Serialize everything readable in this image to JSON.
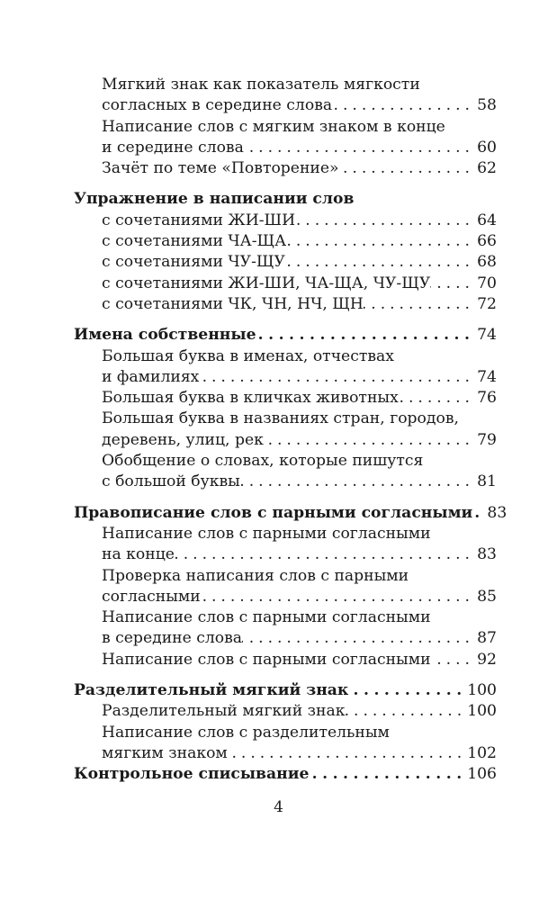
{
  "toc": [
    {
      "entries": [
        {
          "level": 1,
          "bold": false,
          "lines": [
            "Мягкий знак как показатель мягкости",
            "согласных в середине слова"
          ],
          "page": "58"
        },
        {
          "level": 1,
          "bold": false,
          "lines": [
            "Написание слов с мягким знаком в конце",
            "и середине слова"
          ],
          "page": "60"
        },
        {
          "level": 1,
          "bold": false,
          "lines": [
            "Зачёт по теме «Повторение»"
          ],
          "page": "62"
        }
      ]
    },
    {
      "entries": [
        {
          "level": 0,
          "bold": true,
          "lines": [
            "Упражнение в написании слов"
          ],
          "page": null
        },
        {
          "level": 1,
          "bold": false,
          "lines": [
            "с сочетаниями ЖИ-ШИ"
          ],
          "page": "64"
        },
        {
          "level": 1,
          "bold": false,
          "lines": [
            "с сочетаниями ЧА-ЩА"
          ],
          "page": "66"
        },
        {
          "level": 1,
          "bold": false,
          "lines": [
            "с сочетаниями ЧУ-ЩУ"
          ],
          "page": "68"
        },
        {
          "level": 1,
          "bold": false,
          "lines": [
            "с сочетаниями ЖИ-ШИ, ЧА-ЩА, ЧУ-ЩУ"
          ],
          "page": "70"
        },
        {
          "level": 1,
          "bold": false,
          "lines": [
            "с сочетаниями ЧК, ЧН, НЧ, ЩН"
          ],
          "page": "72"
        }
      ]
    },
    {
      "entries": [
        {
          "level": 0,
          "bold": true,
          "lines": [
            "Имена собственные"
          ],
          "page": "74"
        },
        {
          "level": 1,
          "bold": false,
          "lines": [
            "Большая буква в именах, отчествах",
            "и фамилиях"
          ],
          "page": "74"
        },
        {
          "level": 1,
          "bold": false,
          "lines": [
            "Большая буква в кличках животных"
          ],
          "page": "76"
        },
        {
          "level": 1,
          "bold": false,
          "lines": [
            "Большая буква в названиях стран, городов,",
            "деревень, улиц, рек"
          ],
          "page": "79"
        },
        {
          "level": 1,
          "bold": false,
          "lines": [
            "Обобщение о словах, которые пишутся",
            "с большой буквы"
          ],
          "page": "81"
        }
      ]
    },
    {
      "entries": [
        {
          "level": 0,
          "bold": true,
          "lines": [
            "Правописание слов с парными согласными"
          ],
          "page": "83"
        },
        {
          "level": 1,
          "bold": false,
          "lines": [
            "Написание слов с парными согласными",
            "на конце"
          ],
          "page": "83"
        },
        {
          "level": 1,
          "bold": false,
          "lines": [
            "Проверка написания слов с парными",
            "согласными"
          ],
          "page": "85"
        },
        {
          "level": 1,
          "bold": false,
          "lines": [
            "Написание слов с парными согласными",
            "в середине слова"
          ],
          "page": "87"
        },
        {
          "level": 1,
          "bold": false,
          "lines": [
            "Написание слов с парными согласными"
          ],
          "page": "92"
        }
      ]
    },
    {
      "entries": [
        {
          "level": 0,
          "bold": true,
          "lines": [
            "Разделительный мягкий знак"
          ],
          "page": "100"
        },
        {
          "level": 1,
          "bold": false,
          "lines": [
            "Разделительный мягкий знак"
          ],
          "page": "100"
        },
        {
          "level": 1,
          "bold": false,
          "lines": [
            "Написание слов с разделительным",
            "мягким знаком"
          ],
          "page": "102"
        },
        {
          "level": 0,
          "bold": true,
          "lines": [
            "Контрольное списывание"
          ],
          "page": "106"
        }
      ]
    }
  ],
  "page_number": "4"
}
